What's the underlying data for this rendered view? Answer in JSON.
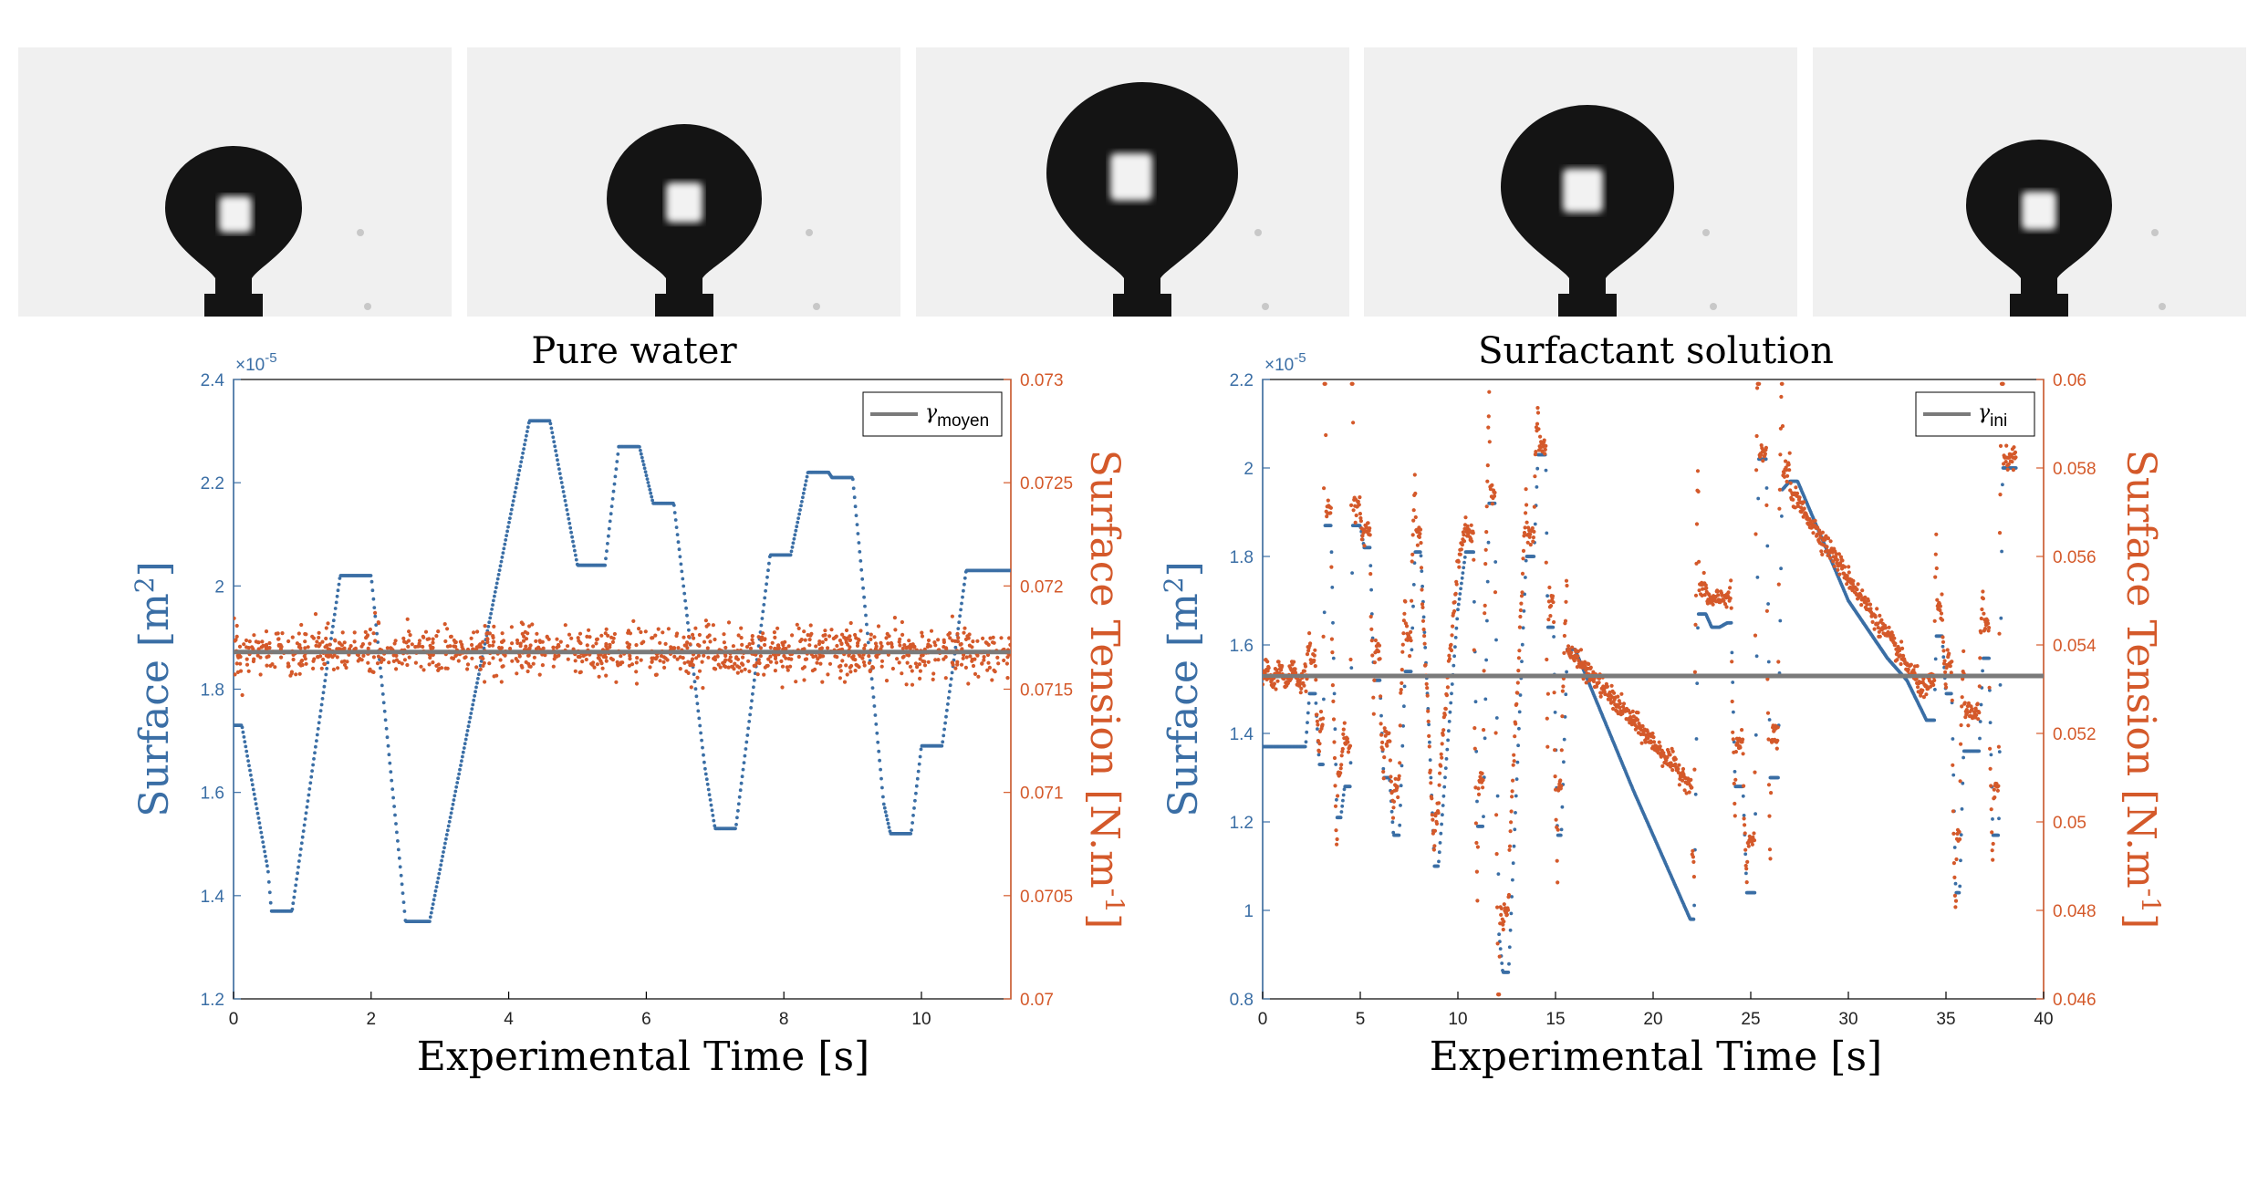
{
  "colors": {
    "surface": "#3a6ea5",
    "tension": "#d4592a",
    "mean": "#7a7a7a",
    "drop": "#141414",
    "background": "#f0f0f0"
  },
  "chart_data": [
    {
      "type": "scatter",
      "title": "Pure water",
      "xlabel": "Experimental Time [s]",
      "ylabel_left": "Surface [m²]",
      "ylabel_left_text": "Surface [m",
      "ylabel_left_sup": "2",
      "ylabel_left_close": "]",
      "ylabel_right_text": "Surface Tension [N.m",
      "ylabel_right_sup": "-1",
      "ylabel_right_close": "]",
      "xlim": [
        0,
        11.3
      ],
      "ylim_left": [
        1.2,
        2.4
      ],
      "ylim_right": [
        0.07,
        0.073
      ],
      "y_left_multiplier": "×10",
      "y_left_exponent": "-5",
      "xticks": [
        "0",
        "2",
        "4",
        "6",
        "8",
        "10"
      ],
      "yticks_left": [
        "1.2",
        "1.4",
        "1.6",
        "1.8",
        "2",
        "2.2",
        "2.4"
      ],
      "yticks_right": [
        "0.07",
        "0.0705",
        "0.071",
        "0.0715",
        "0.072",
        "0.0725",
        "0.073"
      ],
      "legend": {
        "label": "γ",
        "subscript": "moyen",
        "placement": "top-right"
      },
      "mean_line": 0.07168,
      "series": [
        {
          "role": "surface",
          "units": "1e-5 m^2",
          "keyframes": [
            [
              0,
              1.73
            ],
            [
              0.12,
              1.73
            ],
            [
              0.5,
              1.45
            ],
            [
              0.55,
              1.37
            ],
            [
              0.85,
              1.37
            ],
            [
              1.55,
              2.02
            ],
            [
              2.0,
              2.02
            ],
            [
              2.45,
              1.42
            ],
            [
              2.5,
              1.35
            ],
            [
              2.85,
              1.35
            ],
            [
              4.3,
              2.32
            ],
            [
              4.6,
              2.32
            ],
            [
              5.0,
              2.04
            ],
            [
              5.4,
              2.04
            ],
            [
              5.6,
              2.27
            ],
            [
              5.9,
              2.27
            ],
            [
              6.1,
              2.16
            ],
            [
              6.4,
              2.16
            ],
            [
              6.85,
              1.65
            ],
            [
              7.0,
              1.53
            ],
            [
              7.3,
              1.53
            ],
            [
              7.8,
              2.06
            ],
            [
              8.1,
              2.06
            ],
            [
              8.35,
              2.22
            ],
            [
              8.65,
              2.22
            ],
            [
              8.7,
              2.21
            ],
            [
              9.0,
              2.21
            ],
            [
              9.45,
              1.58
            ],
            [
              9.55,
              1.52
            ],
            [
              9.85,
              1.52
            ],
            [
              10.0,
              1.69
            ],
            [
              10.3,
              1.69
            ],
            [
              10.65,
              2.03
            ],
            [
              11.3,
              2.03
            ]
          ]
        },
        {
          "role": "surface tension",
          "units": "N/m",
          "mean": 0.07168,
          "noise_sd": 6e-05,
          "points": 1100
        }
      ]
    },
    {
      "type": "scatter",
      "title": "Surfactant solution",
      "xlabel": "Experimental Time [s]",
      "ylabel_left": "Surface [m²]",
      "ylabel_left_text": "Surface [m",
      "ylabel_left_sup": "2",
      "ylabel_left_close": "]",
      "ylabel_right_text": "Surface Tension [N.m",
      "ylabel_right_sup": "-1",
      "ylabel_right_close": "]",
      "xlim": [
        0,
        40
      ],
      "ylim_left": [
        0.8,
        2.2
      ],
      "ylim_right": [
        0.046,
        0.06
      ],
      "y_left_multiplier": "×10",
      "y_left_exponent": "-5",
      "xticks": [
        "0",
        "5",
        "10",
        "15",
        "20",
        "25",
        "30",
        "35",
        "40"
      ],
      "yticks_left": [
        "0.8",
        "1",
        "1.2",
        "1.4",
        "1.6",
        "1.8",
        "2",
        "2.2"
      ],
      "yticks_right": [
        "0.046",
        "0.048",
        "0.05",
        "0.052",
        "0.054",
        "0.056",
        "0.058",
        "0.06"
      ],
      "legend": {
        "label": "γ",
        "subscript": "ini",
        "placement": "top-right"
      },
      "mean_line": 0.0533,
      "series": [
        {
          "role": "surface",
          "units": "1e-5 m^2",
          "keyframes": [
            [
              0,
              1.37
            ],
            [
              2.2,
              1.37
            ],
            [
              2.4,
              1.49
            ],
            [
              2.7,
              1.49
            ],
            [
              2.9,
              1.33
            ],
            [
              3.1,
              1.33
            ],
            [
              3.2,
              1.87
            ],
            [
              3.5,
              1.87
            ],
            [
              3.8,
              1.21
            ],
            [
              4.0,
              1.21
            ],
            [
              4.2,
              1.28
            ],
            [
              4.5,
              1.28
            ],
            [
              4.6,
              1.87
            ],
            [
              5.0,
              1.87
            ],
            [
              5.2,
              1.82
            ],
            [
              5.5,
              1.82
            ],
            [
              5.7,
              1.52
            ],
            [
              6.0,
              1.52
            ],
            [
              6.2,
              1.3
            ],
            [
              6.5,
              1.3
            ],
            [
              6.7,
              1.17
            ],
            [
              7.0,
              1.17
            ],
            [
              7.3,
              1.54
            ],
            [
              7.6,
              1.54
            ],
            [
              7.8,
              1.81
            ],
            [
              8.1,
              1.81
            ],
            [
              8.5,
              1.43
            ],
            [
              8.8,
              1.1
            ],
            [
              9.0,
              1.1
            ],
            [
              10.0,
              1.68
            ],
            [
              10.4,
              1.81
            ],
            [
              10.8,
              1.81
            ],
            [
              11.0,
              1.19
            ],
            [
              11.3,
              1.19
            ],
            [
              11.6,
              1.92
            ],
            [
              11.9,
              1.92
            ],
            [
              12.1,
              0.95
            ],
            [
              12.3,
              0.86
            ],
            [
              12.6,
              0.86
            ],
            [
              13.5,
              1.8
            ],
            [
              13.9,
              1.8
            ],
            [
              14.1,
              2.03
            ],
            [
              14.5,
              2.03
            ],
            [
              14.6,
              1.64
            ],
            [
              14.9,
              1.64
            ],
            [
              15.1,
              1.17
            ],
            [
              15.3,
              1.17
            ],
            [
              15.6,
              1.59
            ],
            [
              16.0,
              1.59
            ],
            [
              19.0,
              1.27
            ],
            [
              21.9,
              0.98
            ],
            [
              22.1,
              0.98
            ],
            [
              22.3,
              1.67
            ],
            [
              22.7,
              1.67
            ],
            [
              23.0,
              1.64
            ],
            [
              23.4,
              1.64
            ],
            [
              23.8,
              1.65
            ],
            [
              24.0,
              1.65
            ],
            [
              24.2,
              1.28
            ],
            [
              24.6,
              1.28
            ],
            [
              24.8,
              1.04
            ],
            [
              25.2,
              1.04
            ],
            [
              25.4,
              2.02
            ],
            [
              25.8,
              2.02
            ],
            [
              26.0,
              1.3
            ],
            [
              26.4,
              1.3
            ],
            [
              26.6,
              1.95
            ],
            [
              27.0,
              1.97
            ],
            [
              27.4,
              1.97
            ],
            [
              30.0,
              1.7
            ],
            [
              32.0,
              1.57
            ],
            [
              33.0,
              1.52
            ],
            [
              34.0,
              1.43
            ],
            [
              34.4,
              1.43
            ],
            [
              34.5,
              1.62
            ],
            [
              34.8,
              1.62
            ],
            [
              35.0,
              1.49
            ],
            [
              35.3,
              1.49
            ],
            [
              35.5,
              1.04
            ],
            [
              35.7,
              1.04
            ],
            [
              35.9,
              1.36
            ],
            [
              36.2,
              1.36
            ],
            [
              36.4,
              1.36
            ],
            [
              36.7,
              1.36
            ],
            [
              36.9,
              1.57
            ],
            [
              37.2,
              1.57
            ],
            [
              37.4,
              1.17
            ],
            [
              37.7,
              1.17
            ],
            [
              37.9,
              2.0
            ],
            [
              38.6,
              2.0
            ]
          ]
        },
        {
          "role": "surface tension",
          "units": "N/m",
          "mean": 0.0533
        }
      ]
    }
  ]
}
